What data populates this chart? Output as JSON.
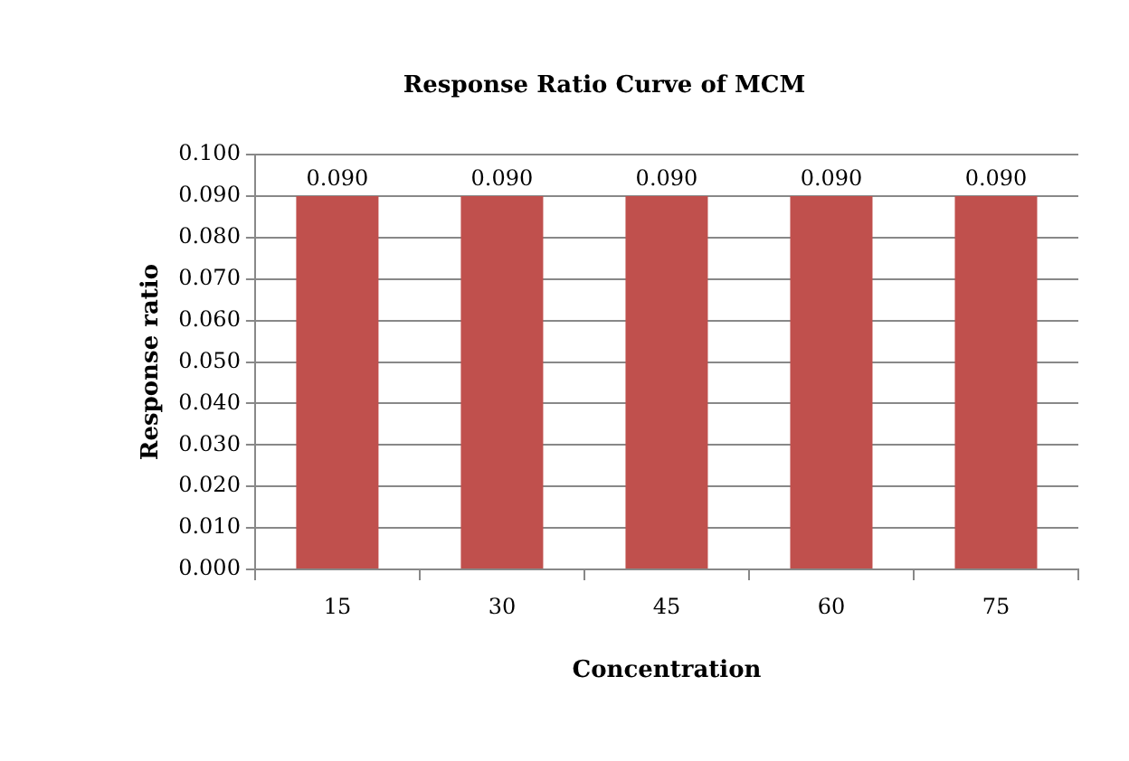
{
  "chart_data": {
    "type": "bar",
    "title": "Response Ratio Curve of MCM",
    "xlabel": "Concentration",
    "ylabel": "Response ratio",
    "categories": [
      "15",
      "30",
      "45",
      "60",
      "75"
    ],
    "values": [
      0.09,
      0.09,
      0.09,
      0.09,
      0.09
    ],
    "value_labels": [
      "0.090",
      "0.090",
      "0.090",
      "0.090",
      "0.090"
    ],
    "color": "#c0504d",
    "ylim": [
      0,
      0.1
    ],
    "yticks": [
      {
        "value": 0,
        "label": "0.000"
      },
      {
        "value": 0.01,
        "label": "0.010"
      },
      {
        "value": 0.02,
        "label": "0.020"
      },
      {
        "value": 0.03,
        "label": "0.030"
      },
      {
        "value": 0.04,
        "label": "0.040"
      },
      {
        "value": 0.05,
        "label": "0.050"
      },
      {
        "value": 0.06,
        "label": "0.060"
      },
      {
        "value": 0.07,
        "label": "0.070"
      },
      {
        "value": 0.08,
        "label": "0.080"
      },
      {
        "value": 0.09,
        "label": "0.090"
      },
      {
        "value": 0.1,
        "label": "0.100"
      }
    ],
    "grid": "y",
    "legend": false
  }
}
